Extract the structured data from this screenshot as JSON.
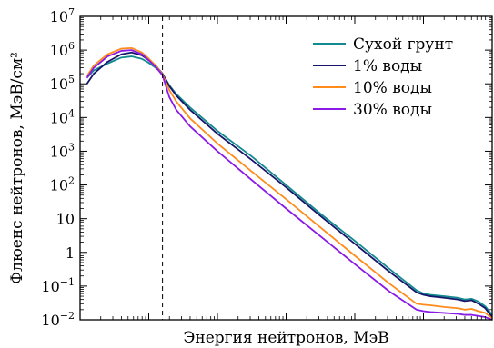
{
  "chart_data": {
    "type": "line",
    "xlabel": "Энергия нейтронов, МэВ",
    "ylabel": "Флюенс нейтронов, МэВ/см²",
    "y_scale": "log",
    "ylim": [
      0.01,
      10000000
    ],
    "yticks": [
      {
        "value": 0.01,
        "mantissa": "10",
        "exp": "−2"
      },
      {
        "value": 0.1,
        "mantissa": "10",
        "exp": "−1"
      },
      {
        "value": 1,
        "mantissa": "1",
        "exp": ""
      },
      {
        "value": 10,
        "mantissa": "10",
        "exp": ""
      },
      {
        "value": 100,
        "mantissa": "10",
        "exp": "2"
      },
      {
        "value": 1000,
        "mantissa": "10",
        "exp": "3"
      },
      {
        "value": 10000,
        "mantissa": "10",
        "exp": "4"
      },
      {
        "value": 100000,
        "mantissa": "10",
        "exp": "5"
      },
      {
        "value": 1000000,
        "mantissa": "10",
        "exp": "6"
      },
      {
        "value": 10000000,
        "mantissa": "10",
        "exp": "7"
      }
    ],
    "x_tick_labels_shown": false,
    "x_scale": "log",
    "xlim": [
      0,
      6
    ],
    "x_axis_note": "x values given as fraction of decade span (log scale, tick labels not printed)",
    "vertical_marker_x": 1.2,
    "legend_position": "top-right",
    "grid": false,
    "series": [
      {
        "name": "Сухой грунт",
        "color": "#138a8f",
        "x": [
          0.1,
          0.2,
          0.4,
          0.6,
          0.75,
          0.9,
          1.0,
          1.1,
          1.2,
          1.3,
          1.4,
          1.6,
          2.0,
          2.5,
          3.0,
          3.5,
          4.0,
          4.5,
          4.9,
          5.0,
          5.1,
          5.3,
          5.5,
          5.6,
          5.7,
          5.8,
          5.9,
          6.0
        ],
        "y": [
          150000,
          250000,
          400000,
          600000,
          650000,
          550000,
          420000,
          300000,
          200000,
          90000,
          50000,
          20000,
          4000,
          700,
          100,
          14,
          2.2,
          0.33,
          0.075,
          0.06,
          0.055,
          0.05,
          0.045,
          0.04,
          0.042,
          0.035,
          0.025,
          0.014
        ]
      },
      {
        "name": "1% воды",
        "color": "#16166b",
        "x": [
          0.1,
          0.2,
          0.4,
          0.6,
          0.75,
          0.9,
          1.0,
          1.1,
          1.2,
          1.3,
          1.4,
          1.6,
          2.0,
          2.5,
          3.0,
          3.5,
          4.0,
          4.5,
          4.9,
          5.0,
          5.1,
          5.3,
          5.5,
          5.6,
          5.7,
          5.8,
          5.9,
          6.0
        ],
        "y": [
          100000,
          200000,
          450000,
          750000,
          850000,
          700000,
          500000,
          350000,
          200000,
          85000,
          45000,
          17000,
          3300,
          550,
          85,
          12,
          1.8,
          0.27,
          0.065,
          0.055,
          0.05,
          0.045,
          0.04,
          0.036,
          0.038,
          0.03,
          0.022,
          0.012
        ]
      },
      {
        "name": "10% воды",
        "color": "#ff8c1a",
        "x": [
          0.1,
          0.2,
          0.4,
          0.6,
          0.75,
          0.9,
          1.0,
          1.1,
          1.2,
          1.3,
          1.4,
          1.6,
          2.0,
          2.5,
          3.0,
          3.5,
          4.0,
          4.5,
          4.9,
          5.0,
          5.1,
          5.3,
          5.5,
          5.6,
          5.7,
          5.8,
          5.9,
          6.0
        ],
        "y": [
          170000,
          350000,
          750000,
          1100000,
          1150000,
          850000,
          560000,
          350000,
          190000,
          65000,
          30000,
          9500,
          1700,
          250,
          38,
          5.5,
          0.8,
          0.12,
          0.03,
          0.028,
          0.027,
          0.024,
          0.022,
          0.02,
          0.021,
          0.018,
          0.016,
          0.011
        ]
      },
      {
        "name": "30% воды",
        "color": "#8a1ae6",
        "x": [
          0.1,
          0.2,
          0.4,
          0.6,
          0.75,
          0.9,
          1.0,
          1.1,
          1.2,
          1.3,
          1.4,
          1.6,
          2.0,
          2.5,
          3.0,
          3.5,
          4.0,
          4.5,
          4.9,
          5.0,
          5.1,
          5.3,
          5.5,
          5.6,
          5.7,
          5.8,
          5.9,
          6.0
        ],
        "y": [
          150000,
          300000,
          650000,
          950000,
          1000000,
          750000,
          500000,
          320000,
          180000,
          40000,
          17000,
          5500,
          1000,
          140,
          20,
          3,
          0.45,
          0.07,
          0.02,
          0.018,
          0.017,
          0.016,
          0.015,
          0.014,
          0.014,
          0.013,
          0.012,
          0.01
        ]
      }
    ]
  }
}
